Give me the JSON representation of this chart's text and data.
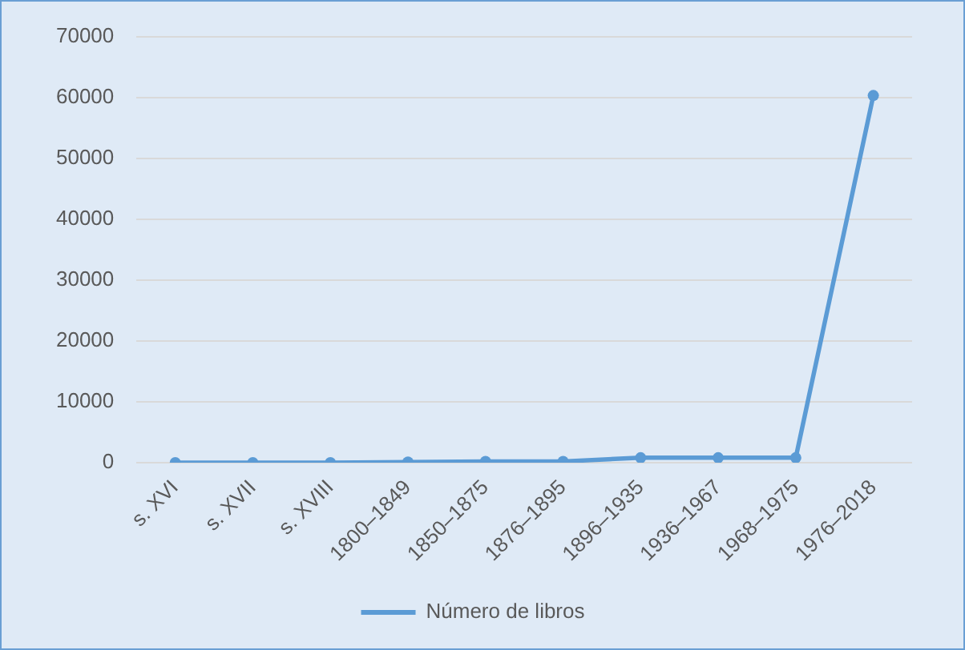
{
  "chart_data": {
    "type": "line",
    "categories": [
      "s. XVI",
      "s. XVII",
      "s. XVIII",
      "1800–1849",
      "1850–1875",
      "1876–1895",
      "1896–1935",
      "1936–1967",
      "1968–1975",
      "1976–2018"
    ],
    "series": [
      {
        "name": "Número de libros",
        "color": "#5b9bd5",
        "values": [
          0,
          0,
          0,
          100,
          200,
          200,
          800,
          800,
          800,
          60300
        ]
      }
    ],
    "ylim": [
      0,
      70000
    ],
    "yticks": [
      0,
      10000,
      20000,
      30000,
      40000,
      50000,
      60000,
      70000
    ],
    "grid": "y",
    "legend": "bottom",
    "marker": "circle",
    "line_style": "solid"
  }
}
